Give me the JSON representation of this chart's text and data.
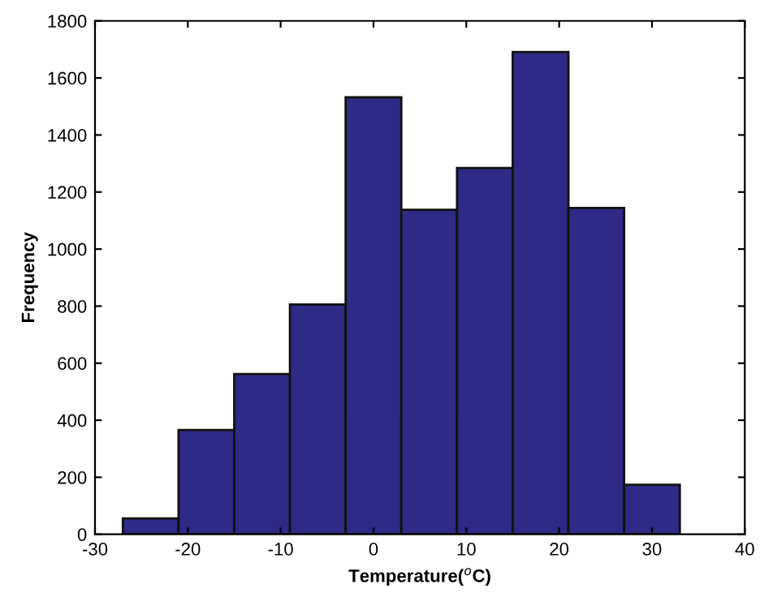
{
  "chart_data": {
    "type": "histogram",
    "xlabel": "Temperature($^{o}$C)",
    "ylabel": "Frequency",
    "bins": [
      -27,
      -21,
      -15,
      -9,
      -3,
      3,
      9,
      15,
      21,
      27,
      33
    ],
    "values": [
      56,
      366,
      562,
      806,
      1532,
      1138,
      1284,
      1691,
      1144,
      174
    ],
    "color": "#2e2a85",
    "xlim": [
      -30,
      40
    ],
    "xticks": [
      -30,
      -20,
      -10,
      0,
      10,
      20,
      30,
      40
    ],
    "ylim": [
      0,
      1800
    ],
    "yticks": [
      0,
      200,
      400,
      600,
      800,
      1000,
      1200,
      1400,
      1600,
      1800
    ],
    "grid": false
  }
}
